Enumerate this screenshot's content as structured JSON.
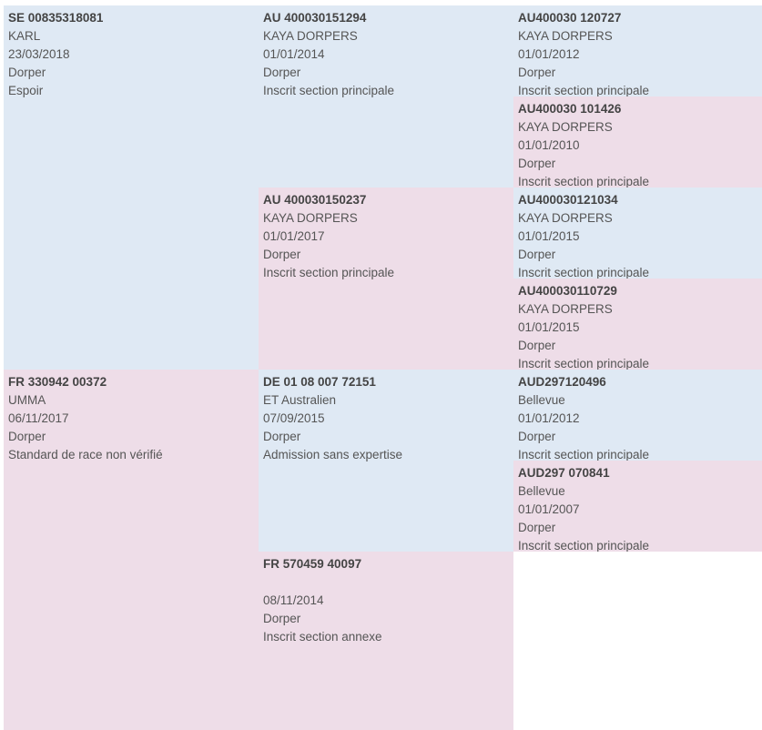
{
  "colors": {
    "male_bg": "#dfe9f4",
    "female_bg": "#eedde8",
    "text": "#555555"
  },
  "pedigree": {
    "subject_sire": {
      "id": "SE 00835318081",
      "name": "KARL",
      "date": "23/03/2018",
      "breed": "Dorper",
      "status": "Espoir"
    },
    "subject_dam": {
      "id": "FR 330942 00372",
      "name": "UMMA",
      "date": "06/11/2017",
      "breed": "Dorper",
      "status": "Standard de race non vérifié"
    },
    "sire_sire": {
      "id": "AU 400030151294",
      "name": "KAYA DORPERS",
      "date": "01/01/2014",
      "breed": "Dorper",
      "status": "Inscrit section principale"
    },
    "sire_dam": {
      "id": "AU 400030150237",
      "name": "KAYA DORPERS",
      "date": "01/01/2017",
      "breed": "Dorper",
      "status": "Inscrit section principale"
    },
    "dam_sire": {
      "id": "DE 01 08 007 72151",
      "name": "ET Australien",
      "date": "07/09/2015",
      "breed": "Dorper",
      "status": "Admission sans expertise"
    },
    "dam_dam": {
      "id": "FR 570459 40097",
      "name": "",
      "date": "08/11/2014",
      "breed": "Dorper",
      "status": "Inscrit section annexe"
    },
    "ss_sire": {
      "id": "AU400030 120727",
      "name": "KAYA DORPERS",
      "date": "01/01/2012",
      "breed": "Dorper",
      "status": "Inscrit section principale"
    },
    "ss_dam": {
      "id": "AU400030 101426",
      "name": "KAYA DORPERS",
      "date": "01/01/2010",
      "breed": "Dorper",
      "status": "Inscrit section principale"
    },
    "sd_sire": {
      "id": "AU400030121034",
      "name": "KAYA DORPERS",
      "date": "01/01/2015",
      "breed": "Dorper",
      "status": "Inscrit section principale"
    },
    "sd_dam": {
      "id": "AU400030110729",
      "name": "KAYA DORPERS",
      "date": "01/01/2015",
      "breed": "Dorper",
      "status": "Inscrit section principale"
    },
    "ds_sire": {
      "id": "AUD297120496",
      "name": "Bellevue",
      "date": "01/01/2012",
      "breed": "Dorper",
      "status": "Inscrit section principale"
    },
    "ds_dam": {
      "id": "AUD297 070841",
      "name": "Bellevue",
      "date": "01/01/2007",
      "breed": "Dorper",
      "status": "Inscrit section principale"
    }
  }
}
